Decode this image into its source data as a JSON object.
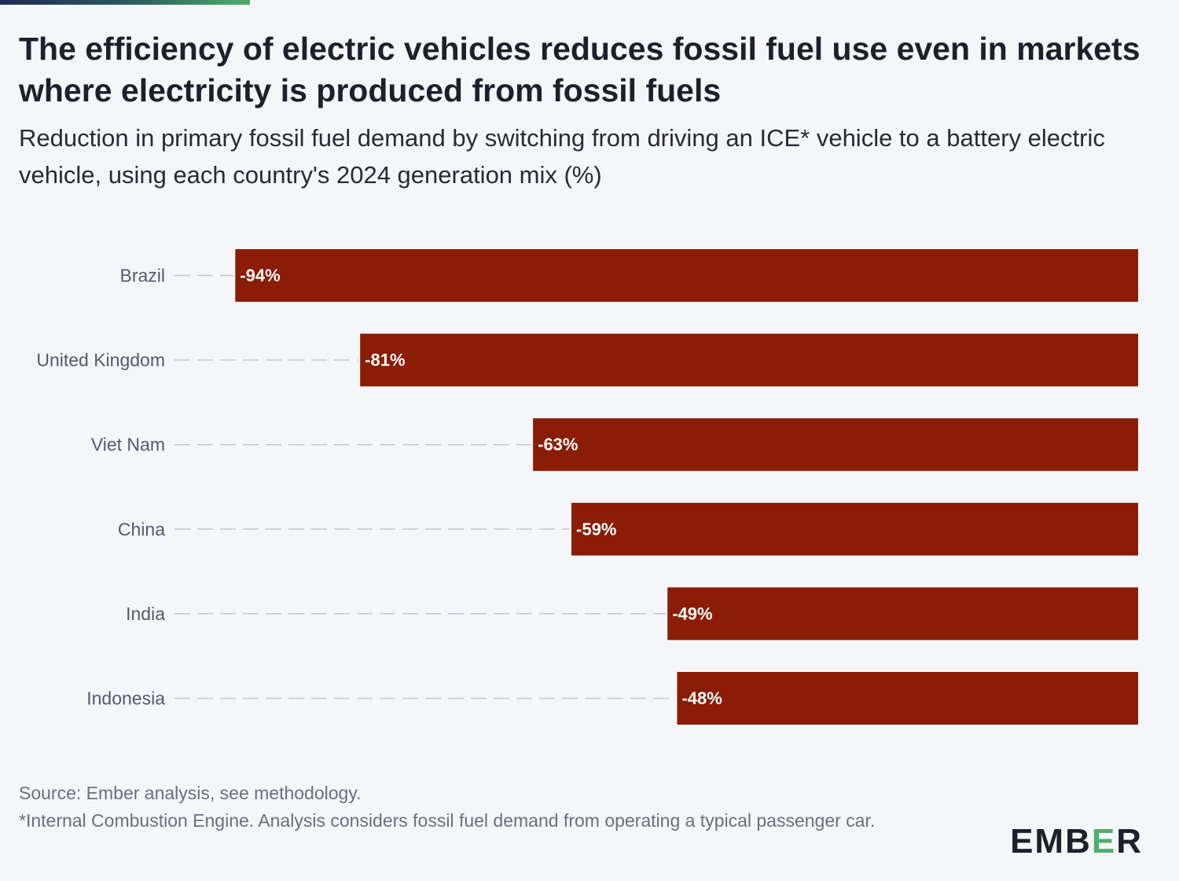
{
  "title": "The efficiency of electric vehicles reduces fossil fuel use even in markets where electricity is produced from fossil fuels",
  "subtitle": "Reduction in primary fossil fuel demand by switching from driving an ICE* vehicle to a battery electric vehicle, using each country's 2024 generation mix (%)",
  "footer": {
    "source": "Source: Ember analysis, see methodology.",
    "note": "*Internal Combustion Engine. Analysis considers fossil fuel demand from operating a typical passenger car."
  },
  "logo": {
    "text": "EMBER"
  },
  "colors": {
    "bar": "#8b1c05",
    "background": "#f4f6fa",
    "accent_start": "#1f2a52",
    "accent_end": "#4fae6a",
    "logo_accent": "#4fae6a"
  },
  "chart_data": {
    "type": "bar",
    "orientation": "horizontal",
    "categories": [
      "Brazil",
      "United Kingdom",
      "Viet Nam",
      "China",
      "India",
      "Indonesia"
    ],
    "values": [
      -94,
      -81,
      -63,
      -59,
      -49,
      -48
    ],
    "value_labels": [
      "-94%",
      "-81%",
      "-63%",
      "-59%",
      "-49%",
      "-48%"
    ],
    "title": "The efficiency of electric vehicles reduces fossil fuel use even in markets where electricity is produced from fossil fuels",
    "xlabel": "",
    "ylabel": "",
    "xlim": [
      -100,
      0
    ],
    "grid": false,
    "legend": "none"
  }
}
